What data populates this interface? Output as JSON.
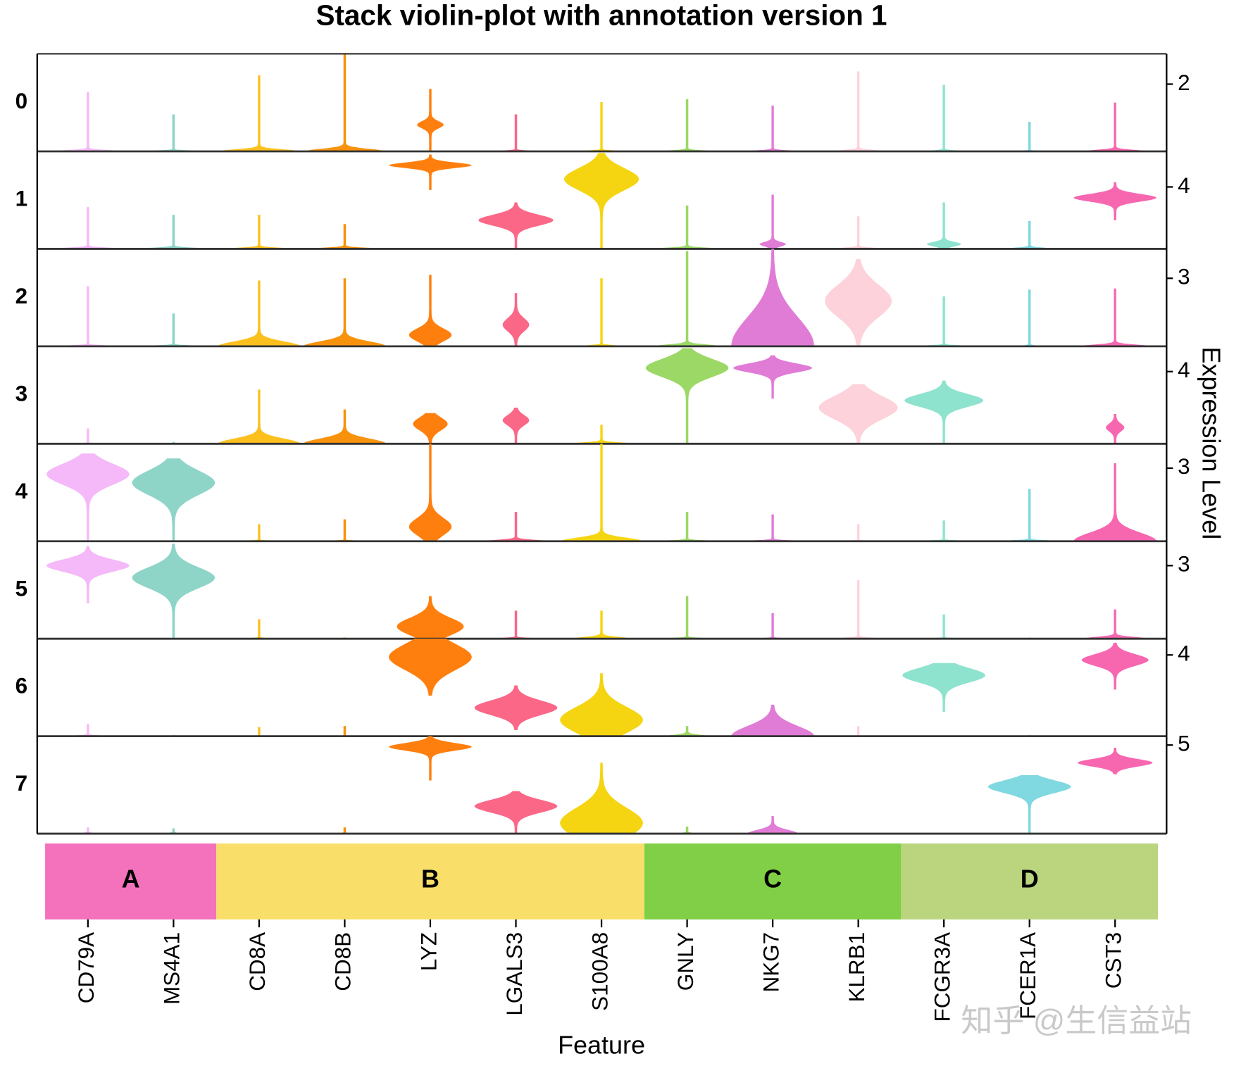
{
  "chart_data": {
    "type": "stacked-violin",
    "title": "Stack violin-plot with annotation version 1",
    "xlabel": "Feature",
    "ylabel": "Expression Level",
    "watermark": "知乎 @生信益站",
    "categories": [
      "CD79A",
      "MS4A1",
      "CD8A",
      "CD8B",
      "LYZ",
      "LGALS3",
      "S100A8",
      "GNLY",
      "NKG7",
      "KLRB1",
      "FCGR3A",
      "FCER1A",
      "CST3"
    ],
    "colors": [
      "#f5b8f8",
      "#8ed5c8",
      "#fcc01e",
      "#f8920c",
      "#ff7f0e",
      "#fb6787",
      "#f5d411",
      "#9bd865",
      "#e07cd6",
      "#fdd2da",
      "#8ee3cf",
      "#80d8e0",
      "#f767b0"
    ],
    "groups": [
      {
        "label": "A",
        "span": 2,
        "color": "#f472bc"
      },
      {
        "label": "B",
        "span": 5,
        "color": "#f9df6a"
      },
      {
        "label": "C",
        "span": 3,
        "color": "#80cf46"
      },
      {
        "label": "D",
        "span": 3,
        "color": "#bad57e"
      }
    ],
    "series": [
      {
        "name": "0",
        "ylim": [
          0,
          2.9
        ],
        "yticks": [
          2
        ],
        "min": [
          0,
          0,
          0,
          0,
          0,
          0,
          0,
          0,
          0,
          0,
          0,
          0,
          0
        ],
        "max": [
          1.76,
          1.1,
          2.26,
          2.9,
          1.86,
          1.1,
          1.47,
          1.55,
          1.36,
          2.38,
          1.98,
          0.88,
          1.45
        ],
        "mode": [
          0,
          0,
          0,
          0,
          0.79,
          0,
          0,
          0,
          0,
          0,
          0,
          0,
          0
        ],
        "width": [
          0.9,
          0.9,
          1,
          1,
          0.3,
          0.6,
          0.7,
          0.7,
          0.7,
          0.7,
          0.7,
          0.7,
          0.8
        ],
        "spread": [
          0.05,
          0.03,
          0.08,
          0.1,
          0.15,
          0.03,
          0.03,
          0.04,
          0.04,
          0.05,
          0.03,
          0.02,
          0.06
        ]
      },
      {
        "name": "1",
        "ylim": [
          0,
          6.3
        ],
        "yticks": [
          4
        ],
        "min": [
          0,
          0,
          0,
          0,
          3.8,
          0,
          0,
          0,
          0,
          0,
          0,
          0,
          1.85
        ],
        "max": [
          2.7,
          2.2,
          2.2,
          1.6,
          6.1,
          3.0,
          6.2,
          2.8,
          3.5,
          2.1,
          3.0,
          1.8,
          4.3
        ],
        "mode": [
          0,
          0,
          0,
          0,
          5.4,
          1.85,
          4.5,
          0,
          0.3,
          0,
          0.3,
          0,
          3.3
        ],
        "width": [
          0.9,
          0.9,
          0.9,
          0.9,
          1,
          0.9,
          0.9,
          0.9,
          0.3,
          0.6,
          0.4,
          0.6,
          1
        ],
        "spread": [
          0.1,
          0.1,
          0.1,
          0.1,
          0.25,
          0.5,
          1.0,
          0.1,
          0.2,
          0.1,
          0.2,
          0.1,
          0.35
        ]
      },
      {
        "name": "2",
        "ylim": [
          0,
          4.3
        ],
        "yticks": [
          3
        ],
        "min": [
          0,
          0,
          0,
          0,
          0,
          0,
          0,
          0,
          0,
          0,
          0,
          0,
          0
        ],
        "max": [
          2.65,
          1.45,
          2.9,
          3.0,
          3.15,
          2.35,
          3.0,
          4.2,
          4.3,
          3.85,
          2.2,
          2.5,
          2.55
        ],
        "mode": [
          0,
          0,
          0,
          0,
          0.5,
          0.95,
          0,
          0,
          0,
          2.0,
          0,
          0,
          0
        ],
        "width": [
          0.9,
          0.9,
          1,
          1,
          0.5,
          0.3,
          0.8,
          0.9,
          1,
          0.8,
          0.8,
          0.7,
          0.9
        ],
        "spread": [
          0.05,
          0.05,
          0.3,
          0.3,
          0.4,
          0.4,
          0.05,
          0.1,
          1.8,
          1.0,
          0.05,
          0.03,
          0.1
        ]
      },
      {
        "name": "3",
        "ylim": [
          0,
          5.4
        ],
        "yticks": [
          4
        ],
        "min": [
          0,
          0,
          0,
          0,
          0,
          0,
          0,
          0,
          2.5,
          0,
          0,
          0,
          0
        ],
        "max": [
          0.85,
          0.1,
          3.0,
          1.9,
          1.7,
          2.0,
          1.05,
          5.3,
          4.9,
          3.3,
          3.5,
          0.05,
          1.65
        ],
        "mode": [
          0,
          0,
          0,
          0,
          1.1,
          1.3,
          0,
          4.2,
          4.2,
          2.0,
          2.4,
          0,
          0.9
        ],
        "width": [
          0.9,
          0.9,
          1,
          1,
          0.4,
          0.3,
          0.8,
          1,
          0.95,
          0.95,
          0.95,
          0.9,
          0.2
        ],
        "spread": [
          0.03,
          0.02,
          0.4,
          0.4,
          0.5,
          0.4,
          0.1,
          0.7,
          0.35,
          0.9,
          0.5,
          0.01,
          0.3
        ]
      },
      {
        "name": "4",
        "ylim": [
          0,
          4.0
        ],
        "yticks": [
          3
        ],
        "min": [
          0,
          0,
          0,
          0,
          0,
          0,
          0,
          0,
          0,
          0,
          0,
          0,
          0
        ],
        "max": [
          3.6,
          3.4,
          0.7,
          0.9,
          4.0,
          1.2,
          4.0,
          1.2,
          1.1,
          0.7,
          0.85,
          2.15,
          3.2
        ],
        "mode": [
          2.75,
          2.4,
          0,
          0,
          0.6,
          0,
          0,
          0,
          0,
          0,
          0,
          0,
          0
        ],
        "width": [
          1,
          1,
          0.9,
          0.9,
          0.5,
          0.8,
          1,
          0.8,
          0.8,
          0.8,
          0.8,
          0.8,
          1
        ],
        "spread": [
          0.6,
          0.7,
          0.03,
          0.03,
          0.5,
          0.08,
          0.2,
          0.05,
          0.05,
          0.03,
          0.04,
          0.05,
          0.5
        ]
      },
      {
        "name": "5",
        "ylim": [
          0,
          4.0
        ],
        "yticks": [
          3
        ],
        "min": [
          1.45,
          0,
          0,
          0,
          0,
          0,
          0,
          0,
          0,
          0,
          0,
          0,
          0
        ],
        "max": [
          3.8,
          3.9,
          0.8,
          0.05,
          1.75,
          1.15,
          1.15,
          1.75,
          1.05,
          2.4,
          1.0,
          0.05,
          1.2
        ],
        "mode": [
          3.0,
          2.5,
          0,
          0,
          0.5,
          0,
          0,
          0,
          0,
          0,
          0,
          0,
          0
        ],
        "width": [
          1,
          1,
          0.8,
          0.8,
          0.8,
          0.8,
          0.7,
          0.8,
          0.8,
          0.8,
          0.8,
          0.8,
          0.8
        ],
        "spread": [
          0.35,
          0.6,
          0.03,
          0.02,
          0.5,
          0.04,
          0.1,
          0.04,
          0.03,
          0.05,
          0.03,
          0.01,
          0.1
        ]
      },
      {
        "name": "6",
        "ylim": [
          0,
          4.8
        ],
        "yticks": [
          4
        ],
        "min": [
          0,
          0,
          0,
          0,
          2.0,
          0.3,
          0,
          0,
          0,
          0,
          1.2,
          0,
          2.3
        ],
        "max": [
          0.6,
          0.05,
          0.45,
          0.5,
          4.8,
          2.5,
          3.1,
          0.5,
          1.55,
          0.5,
          3.6,
          0.05,
          4.6
        ],
        "mode": [
          0,
          0,
          0,
          0,
          3.9,
          1.4,
          0.8,
          0,
          0,
          0,
          3.0,
          0,
          3.75
        ],
        "width": [
          0.6,
          0.8,
          0.8,
          0.8,
          1,
          1,
          1,
          0.5,
          1,
          0.8,
          1,
          0.8,
          0.8
        ],
        "spread": [
          0.05,
          0.02,
          0.02,
          0.02,
          0.9,
          0.5,
          0.9,
          0.1,
          0.7,
          0.02,
          0.5,
          0.02,
          0.4
        ]
      },
      {
        "name": "7",
        "ylim": [
          0,
          5.5
        ],
        "yticks": [
          5
        ],
        "min": [
          0,
          0,
          0,
          0,
          3.0,
          0,
          0,
          0,
          0,
          0,
          0,
          0,
          3.35
        ],
        "max": [
          0.35,
          0.3,
          0.05,
          0.35,
          5.5,
          2.4,
          4.0,
          0.4,
          1.0,
          0.05,
          0.05,
          3.3,
          4.85
        ],
        "mode": [
          0,
          0,
          0,
          0,
          4.9,
          1.55,
          0.6,
          0,
          0,
          0,
          0,
          2.65,
          4.0
        ],
        "width": [
          0.3,
          0.2,
          0.8,
          0.8,
          1,
          1,
          1,
          0.3,
          0.6,
          0.8,
          0.8,
          1,
          0.9
        ],
        "spread": [
          0.05,
          0.05,
          0.02,
          0.03,
          0.3,
          0.5,
          1.2,
          0.05,
          0.3,
          0.02,
          0.02,
          0.5,
          0.3
        ]
      }
    ]
  }
}
